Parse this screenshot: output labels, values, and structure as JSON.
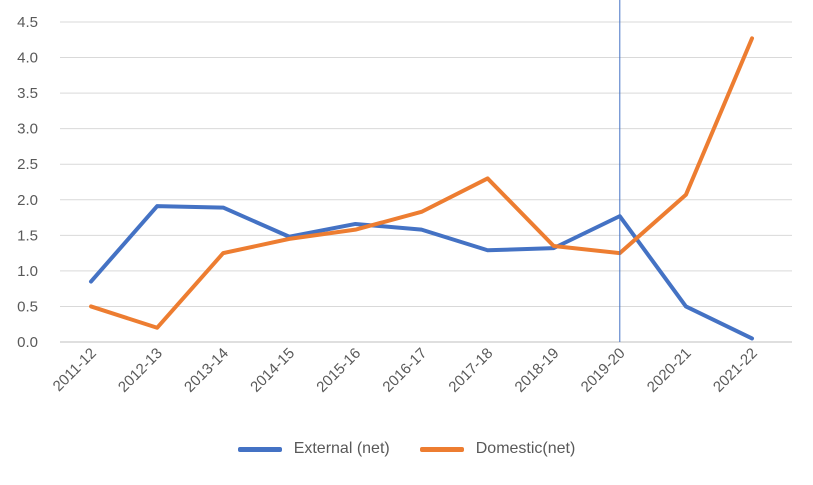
{
  "chart_data": {
    "type": "line",
    "title": "",
    "xlabel": "",
    "ylabel": "",
    "categories": [
      "2011-12",
      "2012-13",
      "2013-14",
      "2014-15",
      "2015-16",
      "2016-17",
      "2017-18",
      "2018-19",
      "2019-20",
      "2020-21",
      "2021-22"
    ],
    "ylim": [
      0,
      4.5
    ],
    "yticks": [
      "0.0",
      "0.5",
      "1.0",
      "1.5",
      "2.0",
      "2.5",
      "3.0",
      "3.5",
      "4.0",
      "4.5"
    ],
    "grid": true,
    "legend_position": "bottom",
    "series": [
      {
        "name": "External (net)",
        "color": "#4472C4",
        "values": [
          0.85,
          1.91,
          1.89,
          1.48,
          1.66,
          1.58,
          1.29,
          1.32,
          1.77,
          0.5,
          0.05
        ]
      },
      {
        "name": "Domestic(net)",
        "color": "#ED7D31",
        "values": [
          0.5,
          0.2,
          1.25,
          1.45,
          1.58,
          1.83,
          2.3,
          1.35,
          1.25,
          2.07,
          4.27
        ]
      }
    ],
    "marker_line": {
      "category": "2019-20",
      "color": "#4472C4"
    }
  }
}
